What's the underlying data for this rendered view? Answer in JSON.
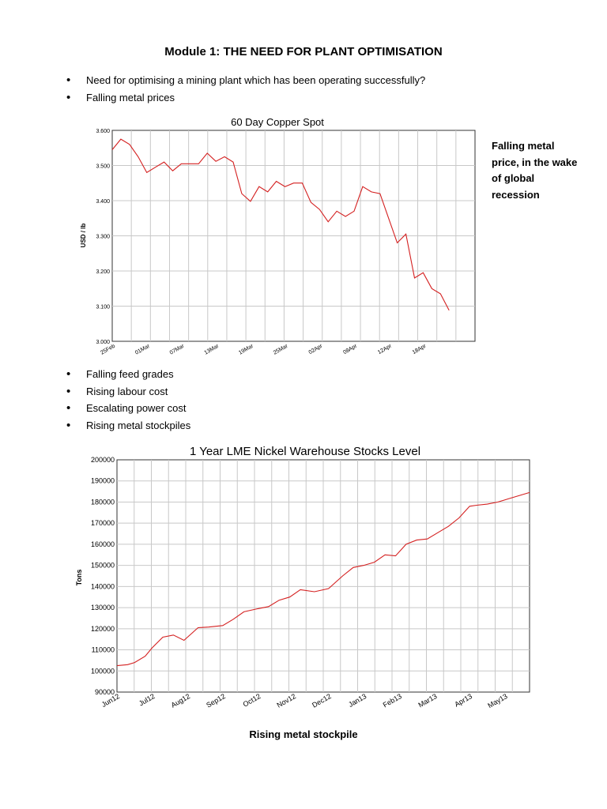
{
  "document": {
    "title": "Module 1:  THE NEED FOR PLANT OPTIMISATION",
    "bullets_top": [
      "Need for optimising a mining plant which has been operating successfully?",
      "Falling metal prices"
    ],
    "side_note": "Falling metal price, in the wake of global recession",
    "bullets_bottom": [
      "Falling feed grades",
      "Rising labour cost",
      "Escalating power cost",
      "Rising metal stockpiles"
    ],
    "caption": "Rising metal stockpile"
  },
  "chart_data": [
    {
      "type": "line",
      "title": "60 Day Copper Spot",
      "xlabel": "",
      "ylabel": "USD / lb",
      "ylim": [
        3.0,
        3.6
      ],
      "yticks": [
        "3.000",
        "3.100",
        "3.200",
        "3.300",
        "3.400",
        "3.500",
        "3.600"
      ],
      "xticks": [
        "25Feb",
        "01Mar",
        "07Mar",
        "13Mar",
        "19Mar",
        "25Mar",
        "02Apr",
        "08Apr",
        "12Apr",
        "18Apr"
      ],
      "grid": true,
      "line_color": "#d42020",
      "x_index_range": [
        0,
        42
      ],
      "x_tick_index": [
        0,
        4,
        8,
        12,
        16,
        20,
        24,
        28,
        32,
        36
      ],
      "series": [
        {
          "values": [
            3.545,
            3.575,
            3.56,
            3.525,
            3.48,
            3.495,
            3.51,
            3.485,
            3.505,
            3.505,
            3.505,
            3.535,
            3.512,
            3.525,
            3.51,
            3.42,
            3.398,
            3.44,
            3.425,
            3.455,
            3.44,
            3.45,
            3.45,
            3.395,
            3.375,
            3.34,
            3.37,
            3.355,
            3.37,
            3.44,
            3.425,
            3.42,
            3.35,
            3.28,
            3.305,
            3.18,
            3.195,
            3.15,
            3.135,
            3.088
          ]
        }
      ]
    },
    {
      "type": "line",
      "title": "1 Year LME Nickel Warehouse Stocks Level",
      "xlabel": "",
      "ylabel": "Tons",
      "ylim": [
        90000,
        200000
      ],
      "yticks": [
        "90000",
        "100000",
        "110000",
        "120000",
        "130000",
        "140000",
        "150000",
        "160000",
        "170000",
        "180000",
        "190000",
        "200000"
      ],
      "xticks": [
        "Jun12",
        "Jul12",
        "Aug12",
        "Sep12",
        "Oct12",
        "Nov12",
        "Dec12",
        "Jan13",
        "Feb13",
        "Mar13",
        "Apr13",
        "May13"
      ],
      "grid": true,
      "line_color": "#d42020",
      "x_index_range": [
        0,
        11.7
      ],
      "series": [
        {
          "x": [
            0,
            0.3,
            0.5,
            0.8,
            1.0,
            1.3,
            1.6,
            1.9,
            2.1,
            2.3,
            2.6,
            3.0,
            3.3,
            3.6,
            4.0,
            4.3,
            4.6,
            4.9,
            5.2,
            5.6,
            6.0,
            6.4,
            6.7,
            7.0,
            7.3,
            7.6,
            7.9,
            8.2,
            8.5,
            8.8,
            9.1,
            9.4,
            9.7,
            10.0,
            10.2,
            10.5,
            10.8,
            11.1,
            11.4,
            11.7
          ],
          "values": [
            102500,
            103000,
            104000,
            107000,
            111000,
            116000,
            117000,
            114500,
            117500,
            120500,
            120800,
            121500,
            124500,
            128000,
            129500,
            130500,
            133500,
            135000,
            138500,
            137500,
            139000,
            145000,
            149000,
            150000,
            151500,
            155000,
            154500,
            160000,
            162000,
            162500,
            165500,
            168500,
            172500,
            178000,
            178500,
            179000,
            180000,
            181500,
            183000,
            184500
          ]
        }
      ]
    }
  ]
}
